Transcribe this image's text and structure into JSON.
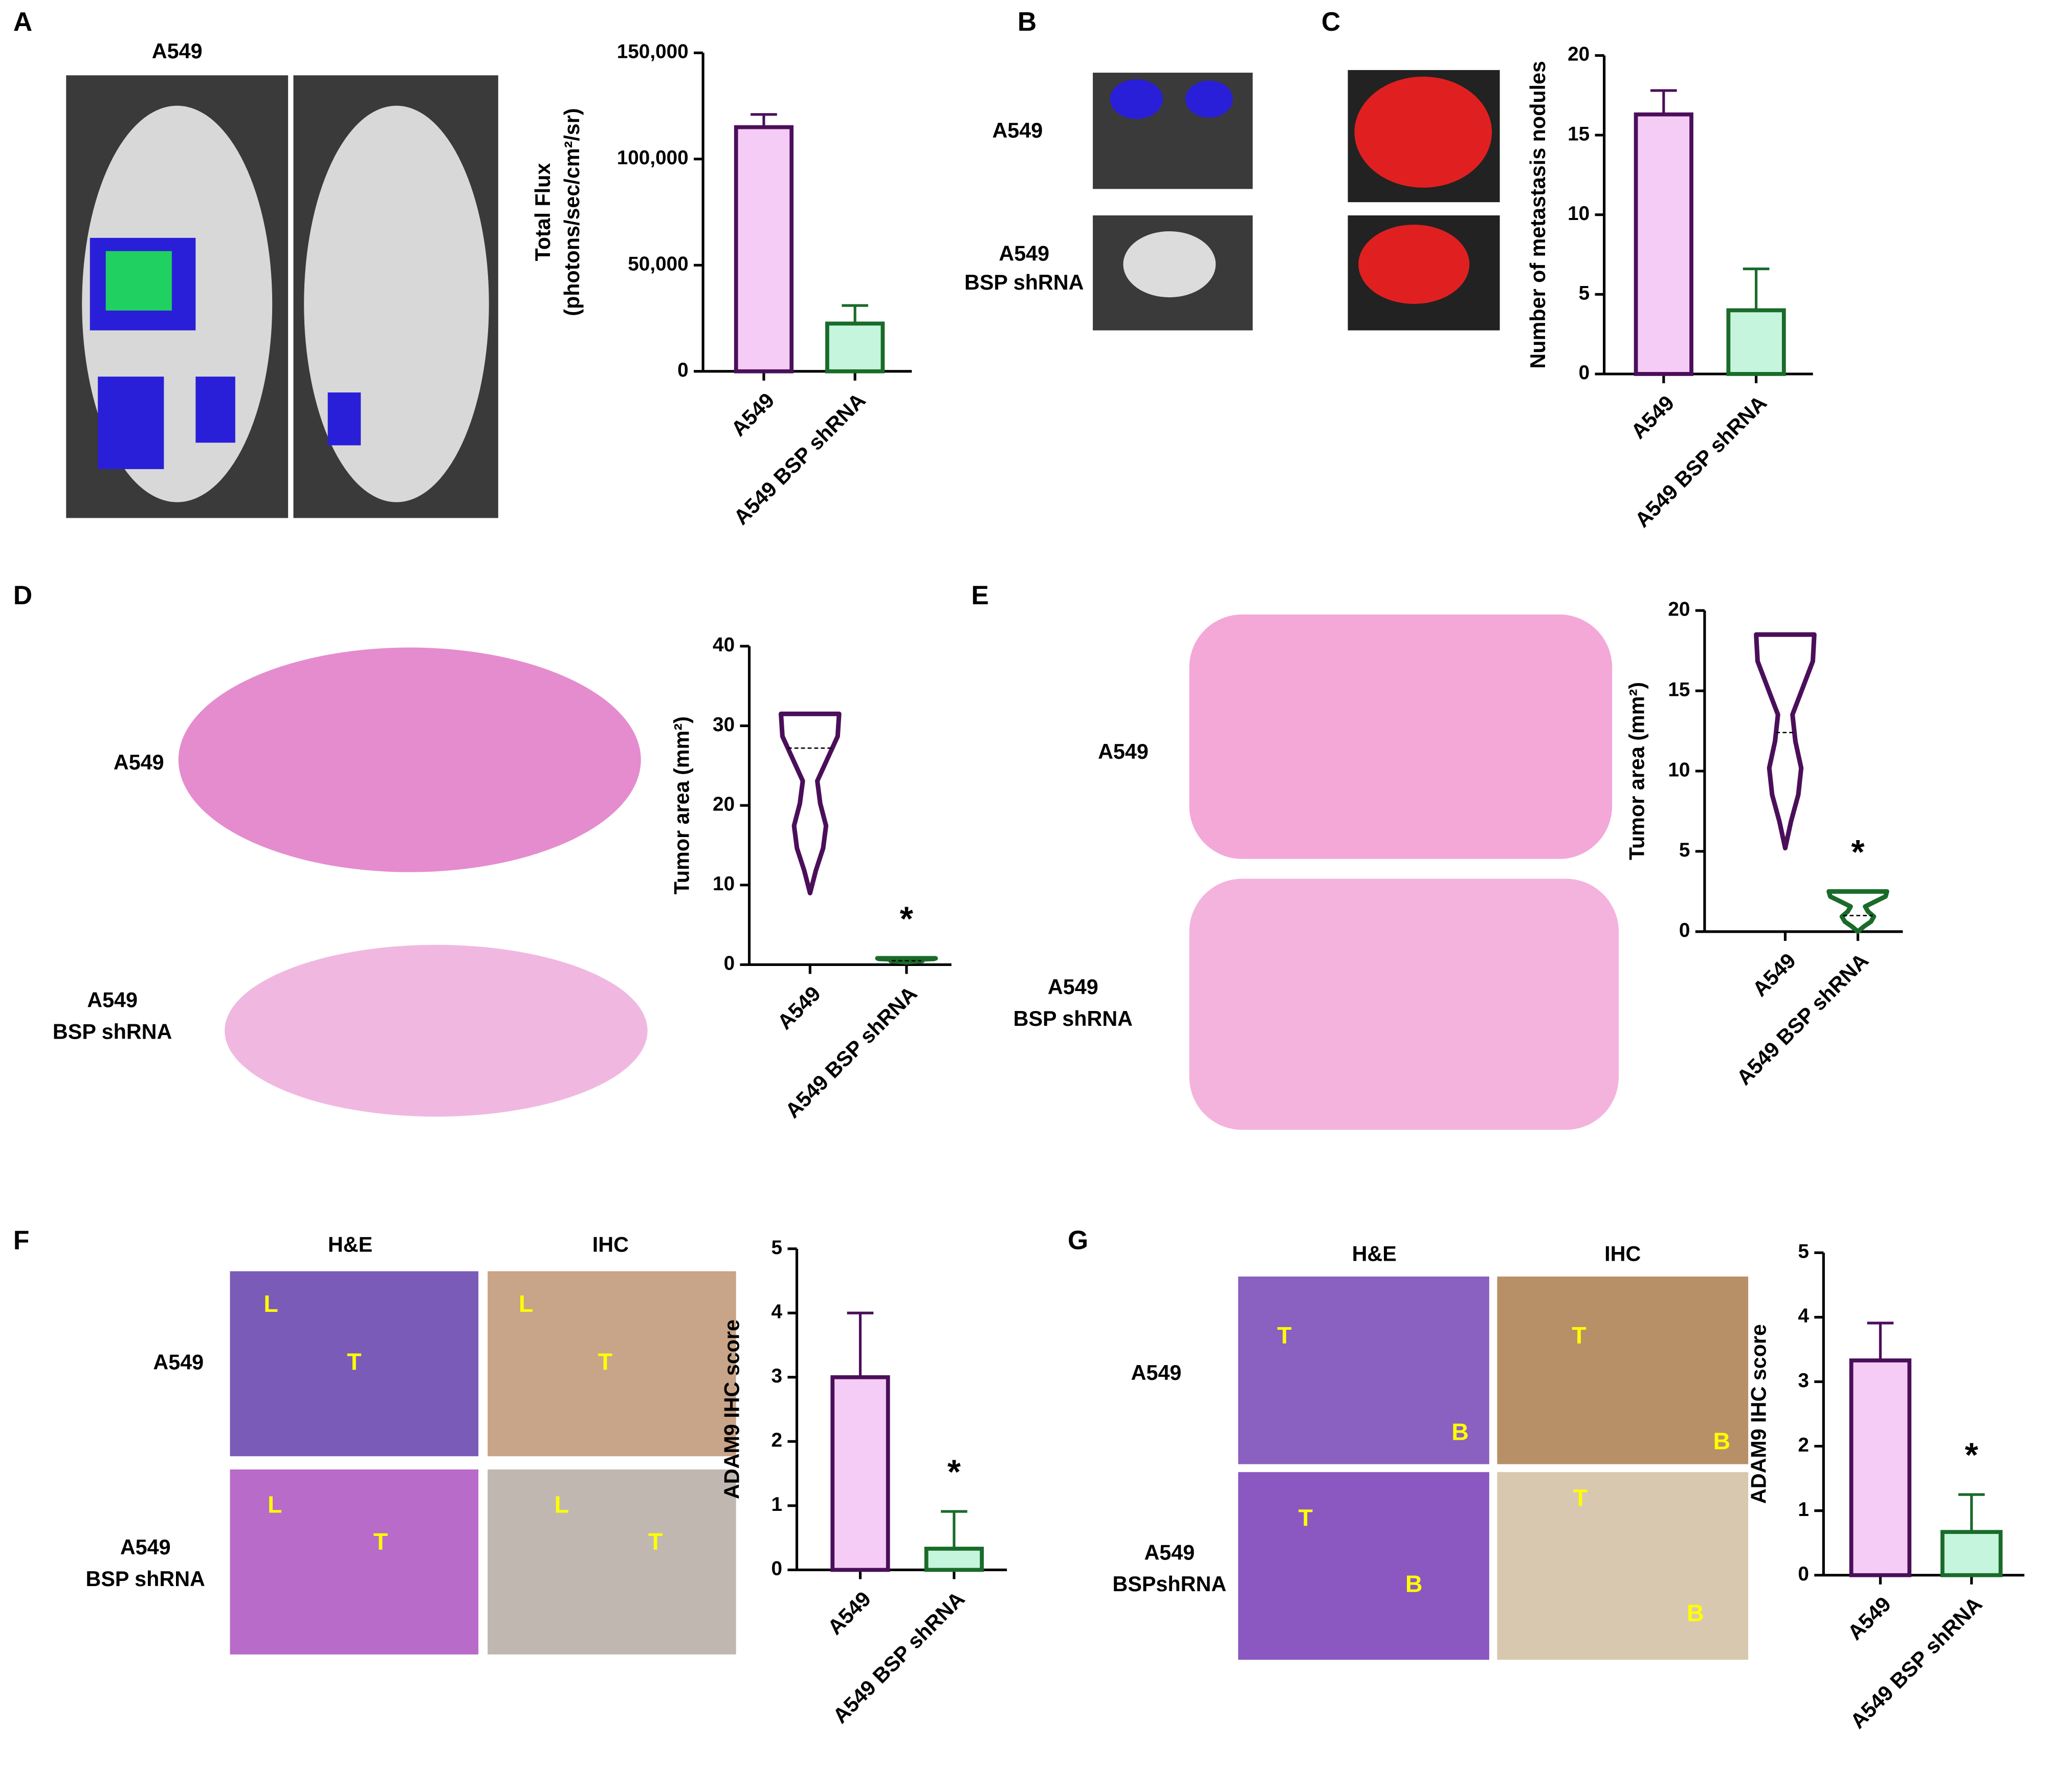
{
  "panel_letters": [
    "A",
    "B",
    "C",
    "D",
    "E",
    "F",
    "G"
  ],
  "labels": [
    "A549",
    "A549",
    [
      "A549",
      "BSP shRNA"
    ],
    "A549",
    [
      "A549",
      "BSP shRNA"
    ],
    "A549",
    [
      "A549",
      "BSP shRNA"
    ],
    "H&E",
    "IHC",
    "A549",
    [
      "A549",
      "BSP shRNA"
    ],
    "H&E",
    "IHC",
    "A549",
    [
      "A549",
      "BSPshRNA"
    ]
  ],
  "image_annotations": [
    "L",
    "T",
    "L",
    "T",
    "L",
    "T",
    "L",
    "T",
    "T",
    "B",
    "T",
    "B",
    "T",
    "B",
    "T",
    "B"
  ],
  "chart_data": [
    {
      "type": "bar",
      "ylabel": [
        "Total Flux",
        "(photons/sec/cm²/sr)"
      ],
      "categories": [
        "A549",
        "A549 BSP shRNA"
      ],
      "values": [
        115000,
        22500
      ],
      "errors": [
        6000,
        8500
      ],
      "colors": [
        "#f5ccf5",
        "#c5f5dc"
      ],
      "edge_colors": [
        "#4b0f5a",
        "#1a6b2a"
      ],
      "ylim": [
        0,
        150000
      ],
      "yticks": [
        0,
        {
          "value": 50000,
          "label": "50,000"
        },
        {
          "value": 100000,
          "label": "100,000"
        },
        {
          "value": 150000,
          "label": "150,000"
        }
      ]
    },
    {
      "type": "bar",
      "ylabel": "Number of metastasis nodules",
      "categories": [
        "A549",
        "A549 BSP shRNA"
      ],
      "values": [
        16.3,
        4
      ],
      "errors": [
        1.5,
        2.6
      ],
      "colors": [
        "#f5ccf5",
        "#c5f5dc"
      ],
      "edge_colors": [
        "#4b0f5a",
        "#1a6b2a"
      ],
      "ylim": [
        0,
        20
      ],
      "yticks": [
        0,
        5,
        10,
        15,
        20
      ]
    },
    {
      "type": "violin",
      "ylabel": "Tumor area (mm²)",
      "categories": [
        "A549",
        "A549 BSP shRNA"
      ],
      "min": [
        9,
        0.3
      ],
      "max": [
        31.5,
        0.8
      ],
      "median": [
        27.2,
        0.5
      ],
      "colors": [
        "#4b0f5a",
        "#1a6b2a"
      ],
      "annotation": "*",
      "ylim": [
        0,
        40
      ],
      "yticks": [
        0,
        10,
        20,
        30,
        40
      ]
    },
    {
      "type": "violin",
      "ylabel": "Tumor area (mm²)",
      "categories": [
        "A549",
        "A549 BSP shRNA"
      ],
      "min": [
        5.2,
        0
      ],
      "max": [
        18.5,
        2.5
      ],
      "median": [
        12.4,
        1
      ],
      "colors": [
        "#4b0f5a",
        "#1a6b2a"
      ],
      "annotation": "*",
      "ylim": [
        0,
        20
      ],
      "yticks": [
        0,
        5,
        10,
        15,
        20
      ]
    },
    {
      "type": "bar",
      "ylabel": "ADAM9 IHC score",
      "categories": [
        "A549",
        "A549 BSP shRNA"
      ],
      "values": [
        3.0,
        0.33
      ],
      "errors": [
        1.0,
        0.58
      ],
      "colors": [
        "#f5ccf5",
        "#c5f5dc"
      ],
      "edge_colors": [
        "#4b0f5a",
        "#1a6b2a"
      ],
      "annotation": "*",
      "ylim": [
        0,
        5
      ],
      "yticks": [
        0,
        1,
        2,
        3,
        4,
        5
      ]
    },
    {
      "type": "bar",
      "ylabel": "ADAM9 IHC score",
      "categories": [
        "A549",
        "A549 BSP shRNA"
      ],
      "values": [
        3.33,
        0.67
      ],
      "errors": [
        0.58,
        0.58
      ],
      "colors": [
        "#f5ccf5",
        "#c5f5dc"
      ],
      "edge_colors": [
        "#4b0f5a",
        "#1a6b2a"
      ],
      "annotation": "*",
      "ylim": [
        0,
        5
      ],
      "yticks": [
        0,
        1,
        2,
        3,
        4,
        5
      ]
    }
  ]
}
